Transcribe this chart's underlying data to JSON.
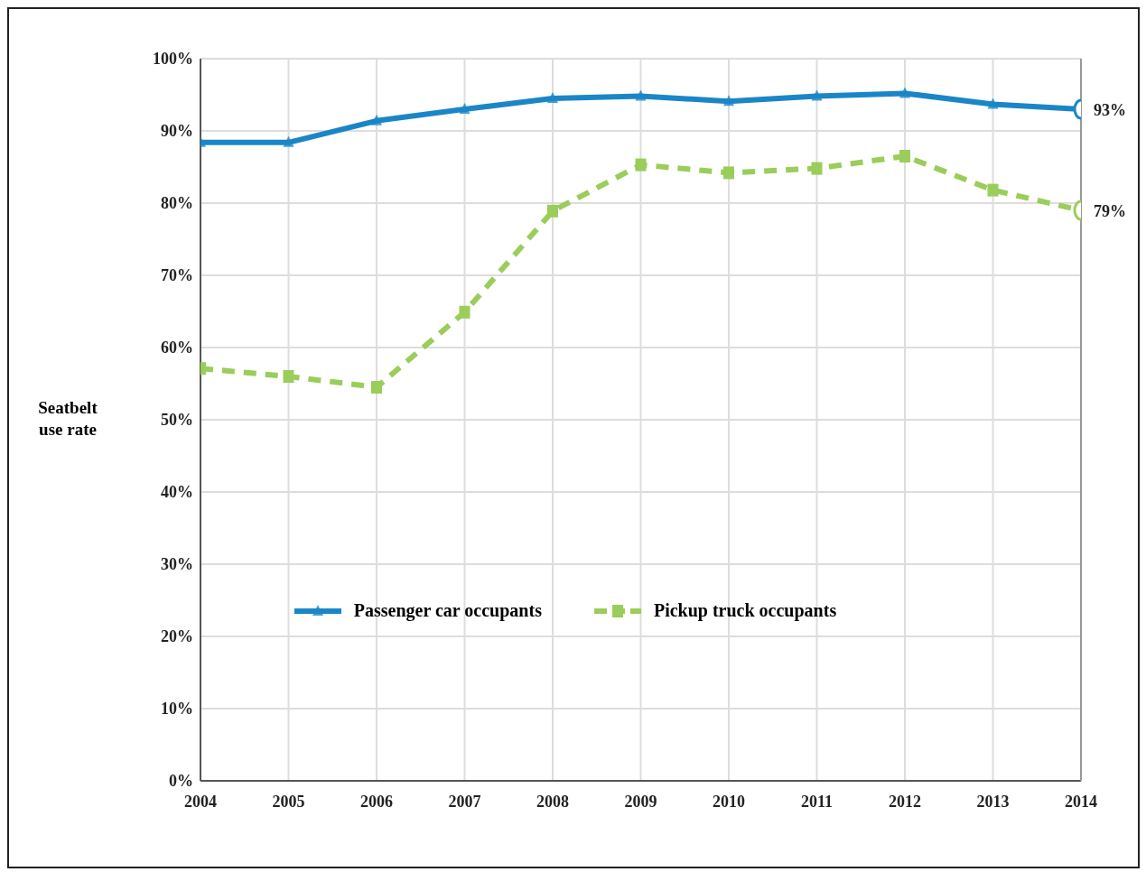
{
  "chart_data": {
    "type": "line",
    "ylabel": "Seatbelt use rate",
    "x": [
      2004,
      2005,
      2006,
      2007,
      2008,
      2009,
      2010,
      2011,
      2012,
      2013,
      2014
    ],
    "xlim": [
      2004,
      2014
    ],
    "xticks": [
      2004,
      2005,
      2006,
      2007,
      2008,
      2009,
      2010,
      2011,
      2012,
      2013,
      2014
    ],
    "ylim": [
      0,
      100
    ],
    "yticks": [
      {
        "value": 0,
        "label": "0%"
      },
      {
        "value": 10,
        "label": "10%"
      },
      {
        "value": 20,
        "label": "20%"
      },
      {
        "value": 30,
        "label": "30%"
      },
      {
        "value": 40,
        "label": "40%"
      },
      {
        "value": 50,
        "label": "50%"
      },
      {
        "value": 60,
        "label": "60%"
      },
      {
        "value": 70,
        "label": "70%"
      },
      {
        "value": 80,
        "label": "80%"
      },
      {
        "value": 90,
        "label": "90%"
      },
      {
        "value": 100,
        "label": "100%"
      }
    ],
    "grid": true,
    "legend": "bottom",
    "series": [
      {
        "name": "Passenger car occupants",
        "color": "#1a86c8",
        "marker": "triangle",
        "line_style": "solid",
        "values": [
          88.4,
          88.4,
          91.4,
          93.0,
          94.5,
          94.8,
          94.1,
          94.8,
          95.2,
          93.7,
          93.0
        ],
        "value_labels": [
          null,
          null,
          null,
          null,
          null,
          null,
          null,
          null,
          null,
          null,
          "93%"
        ]
      },
      {
        "name": "Pickup truck occupants",
        "color": "#9acd5a",
        "marker": "square",
        "line_style": "dashed",
        "values": [
          57.1,
          56.0,
          54.5,
          64.9,
          78.9,
          85.3,
          84.2,
          84.8,
          86.5,
          81.8,
          79.0
        ],
        "value_labels": [
          null,
          null,
          null,
          null,
          null,
          null,
          null,
          null,
          null,
          null,
          "79%"
        ]
      }
    ]
  }
}
